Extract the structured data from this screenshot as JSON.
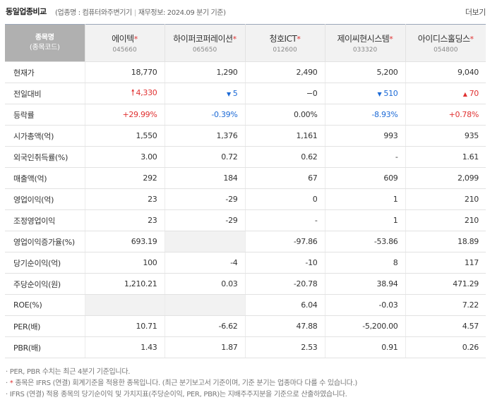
{
  "header": {
    "title": "동일업종비교",
    "subtitle_open": "(",
    "industry_label": "업종명 : 컴퓨터와주변기기",
    "separator": "|",
    "finance_label": "재무정보: 2024.09 분기 기준",
    "subtitle_close": ")",
    "more_label": "더보기"
  },
  "table": {
    "header_label": "종목명",
    "header_sub": "(종목코드)",
    "companies": [
      {
        "name": "에이텍",
        "star": "*",
        "code": "045660"
      },
      {
        "name": "하이퍼코퍼레이션",
        "star": "*",
        "code": "065650"
      },
      {
        "name": "청호ICT",
        "star": "*",
        "code": "012600"
      },
      {
        "name": "제이씨현시스템",
        "star": "*",
        "code": "033320"
      },
      {
        "name": "아이디스홀딩스",
        "star": "*",
        "code": "054800"
      }
    ],
    "rows": [
      {
        "label": "현재가",
        "cells": [
          {
            "text": "18,770"
          },
          {
            "text": "1,290"
          },
          {
            "text": "2,490"
          },
          {
            "text": "5,200"
          },
          {
            "text": "9,040"
          }
        ]
      },
      {
        "label": "전일대비",
        "cells": [
          {
            "icon": "up-arrow-icon",
            "glyph": "🠕",
            "text": "4,330",
            "tone": "up"
          },
          {
            "icon": "down-triangle-icon",
            "glyph": "▼",
            "text": "5",
            "tone": "down"
          },
          {
            "icon": "",
            "glyph": "",
            "text": "−0",
            "tone": ""
          },
          {
            "icon": "down-triangle-icon",
            "glyph": "▼",
            "text": "510",
            "tone": "down"
          },
          {
            "icon": "up-triangle-icon",
            "glyph": "▲",
            "text": "70",
            "tone": "up"
          }
        ]
      },
      {
        "label": "등락률",
        "cells": [
          {
            "text": "+29.99%",
            "tone": "up"
          },
          {
            "text": "-0.39%",
            "tone": "down"
          },
          {
            "text": "0.00%",
            "tone": ""
          },
          {
            "text": "-8.93%",
            "tone": "down"
          },
          {
            "text": "+0.78%",
            "tone": "up"
          }
        ]
      },
      {
        "label": "시가총액(억)",
        "cells": [
          {
            "text": "1,550"
          },
          {
            "text": "1,376"
          },
          {
            "text": "1,161"
          },
          {
            "text": "993"
          },
          {
            "text": "935"
          }
        ]
      },
      {
        "label": "외국인취득률(%)",
        "cells": [
          {
            "text": "3.00"
          },
          {
            "text": "0.72"
          },
          {
            "text": "0.62"
          },
          {
            "text": "-"
          },
          {
            "text": "1.61"
          }
        ]
      },
      {
        "label": "매출액(억)",
        "cells": [
          {
            "text": "292"
          },
          {
            "text": "184"
          },
          {
            "text": "67"
          },
          {
            "text": "609"
          },
          {
            "text": "2,099"
          }
        ]
      },
      {
        "label": "영업이익(억)",
        "cells": [
          {
            "text": "23"
          },
          {
            "text": "-29"
          },
          {
            "text": "0"
          },
          {
            "text": "1"
          },
          {
            "text": "210"
          }
        ]
      },
      {
        "label": "조정영업이익",
        "cells": [
          {
            "text": "23"
          },
          {
            "text": "-29"
          },
          {
            "text": "-"
          },
          {
            "text": "1"
          },
          {
            "text": "210"
          }
        ]
      },
      {
        "label": "영업이익증가율(%)",
        "cells": [
          {
            "text": "693.19"
          },
          {
            "text": "",
            "grey": true
          },
          {
            "text": "-97.86"
          },
          {
            "text": "-53.86"
          },
          {
            "text": "18.89"
          }
        ]
      },
      {
        "label": "당기순이익(억)",
        "cells": [
          {
            "text": "100"
          },
          {
            "text": "-4"
          },
          {
            "text": "-10"
          },
          {
            "text": "8"
          },
          {
            "text": "117"
          }
        ]
      },
      {
        "label": "주당순이익(원)",
        "cells": [
          {
            "text": "1,210.21"
          },
          {
            "text": "0.03"
          },
          {
            "text": "-20.78"
          },
          {
            "text": "38.94"
          },
          {
            "text": "471.29"
          }
        ]
      },
      {
        "label": "ROE(%)",
        "cells": [
          {
            "text": "",
            "grey": true
          },
          {
            "text": "",
            "grey": true
          },
          {
            "text": "6.04"
          },
          {
            "text": "-0.03"
          },
          {
            "text": "7.22"
          }
        ]
      },
      {
        "label": "PER(배)",
        "cells": [
          {
            "text": "10.71"
          },
          {
            "text": "-6.62"
          },
          {
            "text": "47.88"
          },
          {
            "text": "-5,200.00"
          },
          {
            "text": "4.57"
          }
        ]
      },
      {
        "label": "PBR(배)",
        "cells": [
          {
            "text": "1.43"
          },
          {
            "text": "1.87"
          },
          {
            "text": "2.53"
          },
          {
            "text": "0.91"
          },
          {
            "text": "0.26"
          }
        ]
      }
    ]
  },
  "notes": {
    "line1": "· PER, PBR 수치는 최근 4분기 기준입니다.",
    "line2_prefix": "·",
    "line2_star": "*",
    "line2_rest": "종목은 IFRS (연결) 회계기준을 적용한 종목입니다. (최근 분기보고서 기준이며, 기준 분기는 업종마다 다를 수 있습니다.)",
    "line3": "· IFRS (연결) 적용 종목의 당기순이익 및 가치지표(주당순이익, PER, PBR)는 지배주주지분을 기준으로 산출하였습니다."
  },
  "colors": {
    "up": "#e03131",
    "down": "#1c6ad6",
    "header_label_bg": "#b0b0b0"
  }
}
